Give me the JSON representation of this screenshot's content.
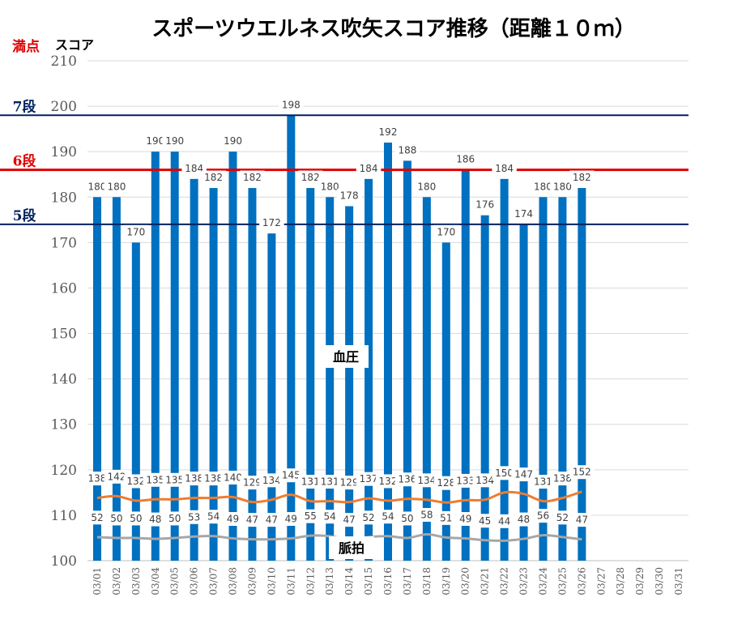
{
  "chart_data": {
    "type": "bar",
    "title": "スポーツウエルネス吹矢スコア推移（距離１０ｍ）",
    "ylabel": "スコア",
    "ylim": [
      100,
      210
    ],
    "yticks": [
      100,
      110,
      120,
      130,
      140,
      150,
      160,
      170,
      180,
      190,
      200,
      210
    ],
    "grid": true,
    "categories": [
      "03/01",
      "03/02",
      "03/03",
      "03/04",
      "03/05",
      "03/06",
      "03/07",
      "03/08",
      "03/09",
      "03/10",
      "03/11",
      "03/12",
      "03/13",
      "03/14",
      "03/15",
      "03/16",
      "03/17",
      "03/18",
      "03/19",
      "03/20",
      "03/21",
      "03/22",
      "03/23",
      "03/24",
      "03/25",
      "03/26",
      "03/27",
      "03/28",
      "03/29",
      "03/30",
      "03/31"
    ],
    "series": [
      {
        "kind": "bar",
        "color": "#0070C0",
        "values": [
          180,
          180,
          170,
          190,
          190,
          184,
          182,
          190,
          182,
          172,
          198,
          182,
          180,
          178,
          184,
          192,
          188,
          180,
          170,
          186,
          176,
          184,
          174,
          180,
          180,
          182,
          null,
          null,
          null,
          null,
          null
        ]
      },
      {
        "name": "血圧",
        "kind": "line",
        "color": "#ED7D31",
        "values": [
          138,
          142,
          132,
          135,
          135,
          138,
          138,
          140,
          129,
          134,
          145,
          131,
          131,
          129,
          137,
          132,
          136,
          134,
          128,
          133,
          134,
          150,
          147,
          131,
          138,
          152,
          null,
          null,
          null,
          null,
          null
        ]
      },
      {
        "name": "脈拍",
        "kind": "line",
        "color": "#A6A6A6",
        "values": [
          52,
          50,
          50,
          48,
          50,
          53,
          54,
          49,
          47,
          47,
          49,
          55,
          54,
          47,
          52,
          54,
          50,
          58,
          51,
          49,
          45,
          44,
          48,
          56,
          52,
          47,
          null,
          null,
          null,
          null,
          null
        ]
      }
    ],
    "thresholds": [
      {
        "label": "満点",
        "value": 210,
        "color": "#E00000"
      },
      {
        "label": "7段",
        "value": 198,
        "color": "#002060"
      },
      {
        "label": "6段",
        "value": 186,
        "color": "#E00000"
      },
      {
        "label": "5段",
        "value": 174,
        "color": "#002060"
      }
    ]
  }
}
